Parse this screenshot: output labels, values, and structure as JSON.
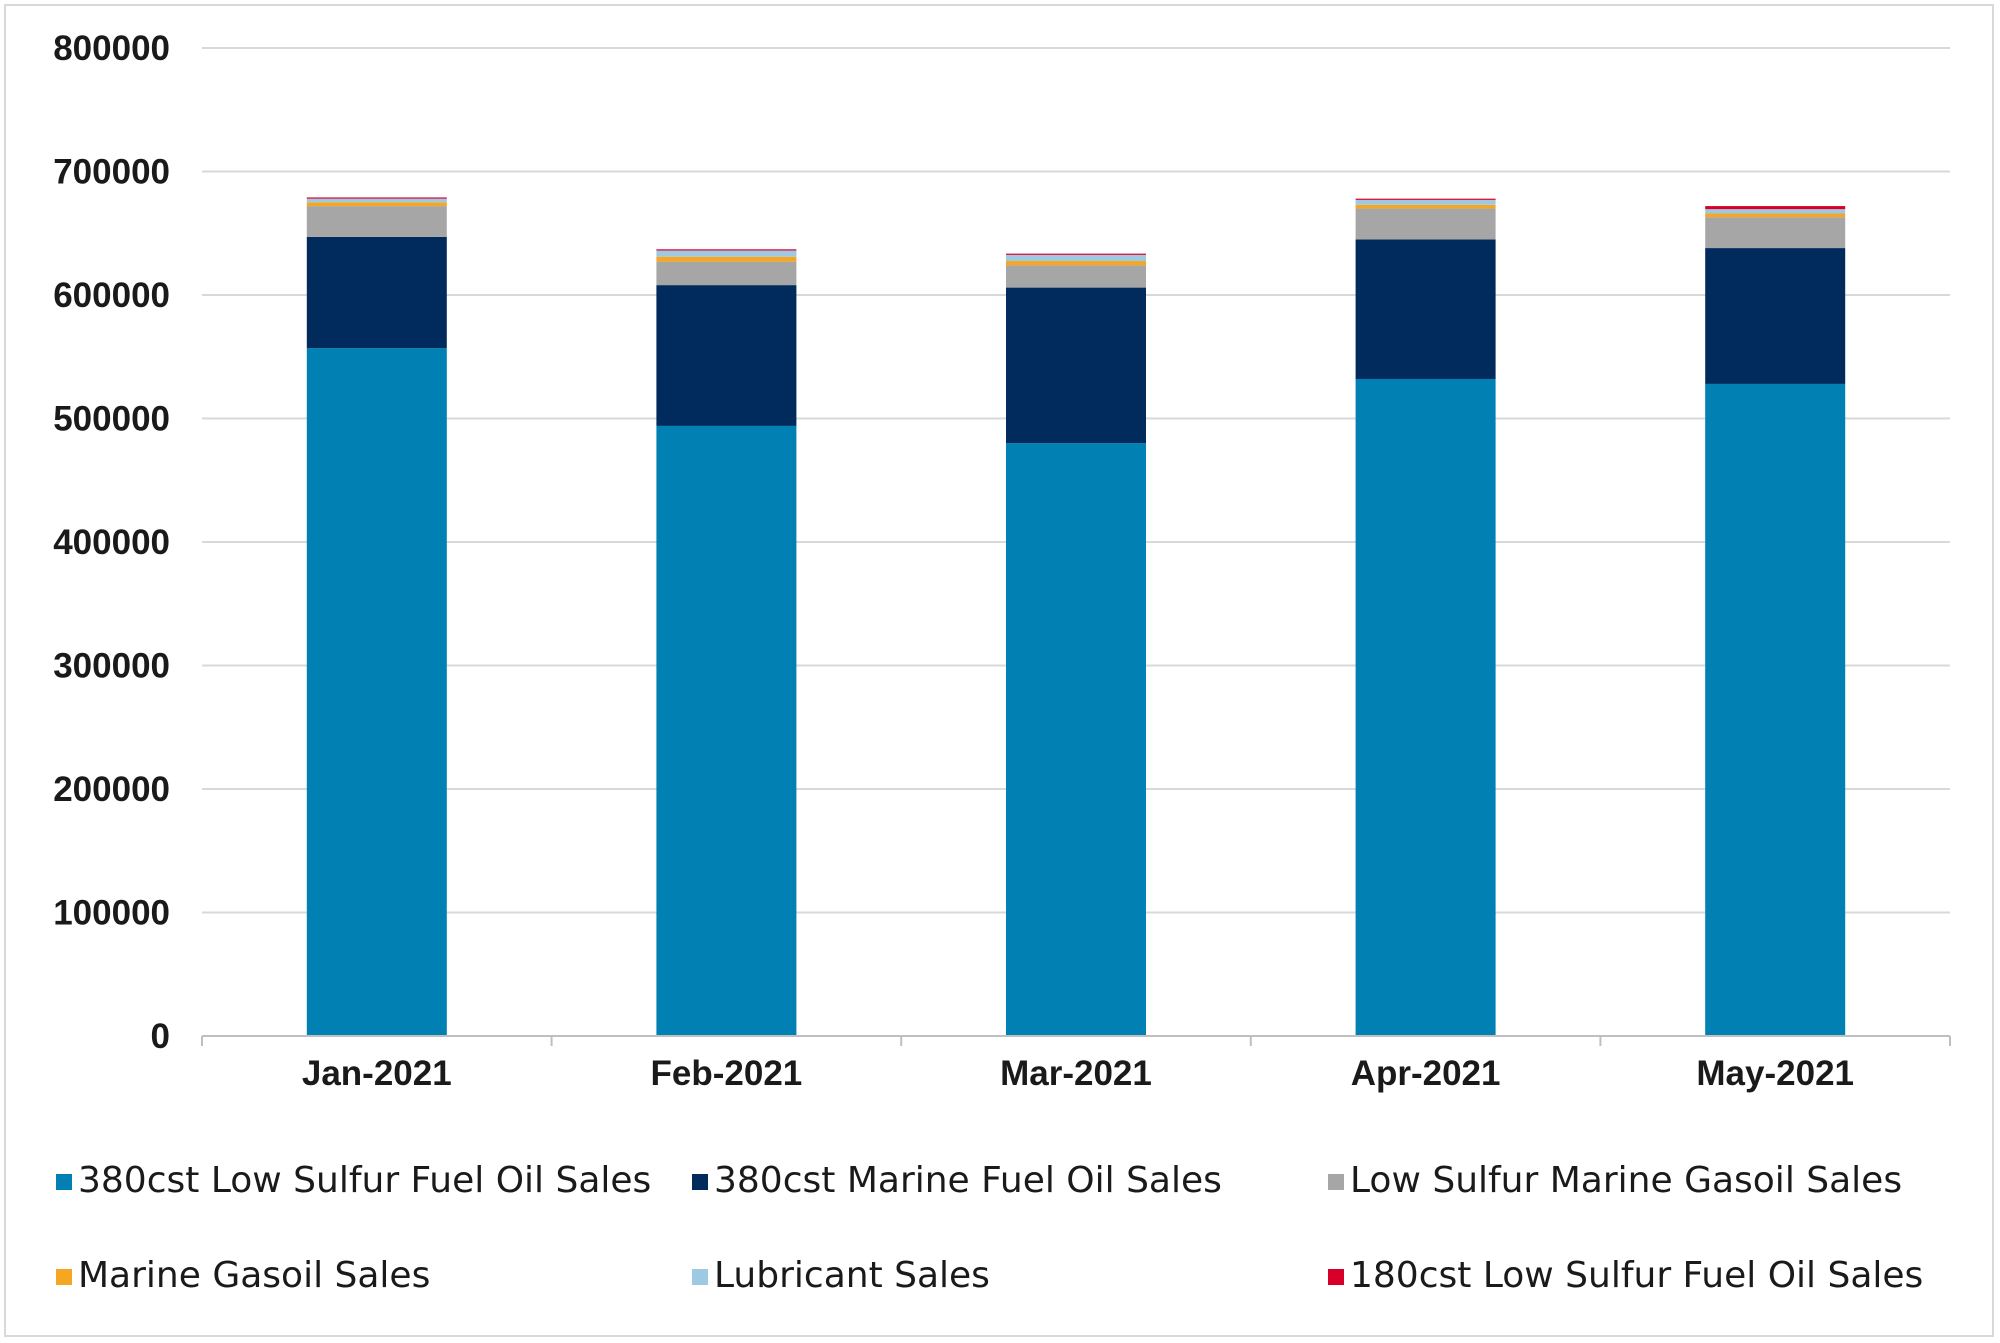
{
  "chart_data": {
    "type": "bar",
    "stacked": true,
    "title": "",
    "xlabel": "",
    "ylabel": "",
    "ylim": [
      0,
      800000
    ],
    "yticks": [
      0,
      100000,
      200000,
      300000,
      400000,
      500000,
      600000,
      700000,
      800000
    ],
    "grid": true,
    "legend_position": "bottom",
    "categories": [
      "Jan-2021",
      "Feb-2021",
      "Mar-2021",
      "Apr-2021",
      "May-2021"
    ],
    "series": [
      {
        "name": "380cst Low Sulfur Fuel Oil Sales",
        "color": "#0080b3",
        "values": [
          557000,
          494000,
          480000,
          532000,
          528000
        ]
      },
      {
        "name": "380cst Marine Fuel Oil Sales",
        "color": "#002b5c",
        "values": [
          90000,
          114000,
          126000,
          113000,
          110000
        ]
      },
      {
        "name": "Low Sulfur Marine Gasoil Sales",
        "color": "#a6a6a6",
        "values": [
          25000,
          19000,
          18000,
          25000,
          25000
        ]
      },
      {
        "name": "Marine Gasoil Sales",
        "color": "#f5a623",
        "values": [
          3000,
          4000,
          3500,
          3000,
          3000
        ]
      },
      {
        "name": "Lubricant Sales",
        "color": "#9ec9e2",
        "values": [
          3000,
          5000,
          5000,
          4000,
          3500
        ]
      },
      {
        "name": "180cst Low Sulfur Fuel Oil Sales",
        "color": "#d8002b",
        "values": [
          1000,
          1000,
          1000,
          1000,
          2500
        ]
      }
    ]
  }
}
